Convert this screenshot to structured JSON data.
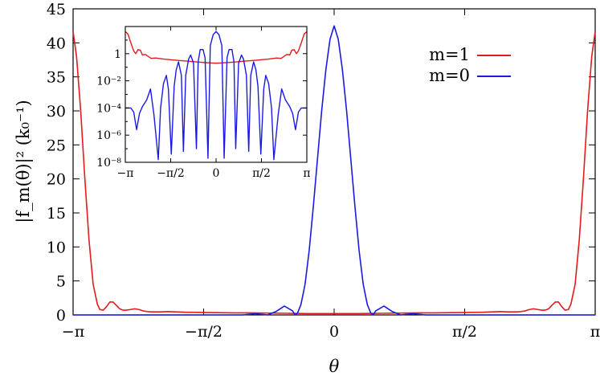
{
  "chart_data": [
    {
      "type": "line",
      "xlabel": "θ",
      "ylabel": "|f_m(θ)|² (k₀⁻¹)",
      "xlim": [
        -3.14159,
        3.14159
      ],
      "ylim": [
        0,
        45
      ],
      "xticks": [
        {
          "value": -3.14159,
          "label": "−π"
        },
        {
          "value": -1.5708,
          "label": "−π/2"
        },
        {
          "value": 0,
          "label": "0"
        },
        {
          "value": 1.5708,
          "label": "π/2"
        },
        {
          "value": 3.14159,
          "label": "π"
        }
      ],
      "yticks": [
        {
          "value": 0,
          "label": "0"
        },
        {
          "value": 5,
          "label": "5"
        },
        {
          "value": 10,
          "label": "10"
        },
        {
          "value": 15,
          "label": "15"
        },
        {
          "value": 20,
          "label": "20"
        },
        {
          "value": 25,
          "label": "25"
        },
        {
          "value": 30,
          "label": "30"
        },
        {
          "value": 35,
          "label": "35"
        },
        {
          "value": 40,
          "label": "40"
        },
        {
          "value": 45,
          "label": "45"
        }
      ],
      "legend_position": "top-right",
      "series": [
        {
          "name": "m=1",
          "legend_label": "m=1",
          "color": "#e41a1c",
          "x": [
            -3.14,
            -3.1,
            -3.05,
            -3.0,
            -2.95,
            -2.9,
            -2.85,
            -2.82,
            -2.78,
            -2.74,
            -2.7,
            -2.66,
            -2.62,
            -2.58,
            -2.54,
            -2.5,
            -2.45,
            -2.4,
            -2.35,
            -2.3,
            -2.25,
            -2.2,
            -2.1,
            -2.0,
            -1.8,
            -1.5,
            -1.2,
            -1.0,
            -0.6,
            -0.3,
            0.0,
            0.3,
            0.6,
            1.0,
            1.2,
            1.5,
            1.8,
            2.0,
            2.1,
            2.2,
            2.25,
            2.3,
            2.35,
            2.4,
            2.45,
            2.5,
            2.54,
            2.58,
            2.62,
            2.66,
            2.7,
            2.74,
            2.78,
            2.82,
            2.85,
            2.9,
            2.95,
            3.0,
            3.05,
            3.1,
            3.14
          ],
          "y": [
            41.5,
            38,
            30,
            20,
            11,
            4.5,
            1.6,
            0.8,
            0.7,
            1.2,
            1.9,
            1.9,
            1.4,
            0.9,
            0.7,
            0.7,
            0.8,
            0.9,
            0.8,
            0.6,
            0.5,
            0.45,
            0.45,
            0.5,
            0.4,
            0.35,
            0.3,
            0.3,
            0.25,
            0.2,
            0.2,
            0.2,
            0.25,
            0.3,
            0.3,
            0.35,
            0.4,
            0.5,
            0.45,
            0.45,
            0.5,
            0.6,
            0.8,
            0.9,
            0.8,
            0.7,
            0.7,
            0.9,
            1.4,
            1.9,
            1.9,
            1.2,
            0.7,
            0.8,
            1.6,
            4.5,
            11,
            20,
            30,
            38,
            41.5
          ]
        },
        {
          "name": "m=0",
          "legend_label": "m=0",
          "color": "#1a1ae4",
          "x": [
            -3.14,
            -1.1,
            -1.0,
            -0.95,
            -0.9,
            -0.8,
            -0.7,
            -0.6,
            -0.5,
            -0.47,
            -0.44,
            -0.4,
            -0.35,
            -0.3,
            -0.25,
            -0.2,
            -0.15,
            -0.1,
            -0.05,
            0.0,
            0.05,
            0.1,
            0.15,
            0.2,
            0.25,
            0.3,
            0.35,
            0.4,
            0.44,
            0.47,
            0.5,
            0.6,
            0.7,
            0.8,
            0.9,
            0.95,
            1.0,
            1.1,
            3.14
          ],
          "y": [
            0,
            0,
            0.12,
            0.18,
            0.12,
            0,
            0.5,
            1.3,
            0.6,
            0,
            0.3,
            1.5,
            4.5,
            9.5,
            16,
            23,
            30,
            36,
            40.5,
            42.5,
            40.5,
            36,
            30,
            23,
            16,
            9.5,
            4.5,
            1.5,
            0.3,
            0,
            0.6,
            1.3,
            0.5,
            0,
            0.12,
            0.18,
            0.12,
            0,
            0
          ]
        }
      ]
    },
    {
      "type": "line",
      "scale": "log",
      "xlim": [
        -3.14159,
        3.14159
      ],
      "ylim_exponent": [
        -8,
        2
      ],
      "xticks": [
        {
          "value": -3.14159,
          "label": "−π"
        },
        {
          "value": -1.5708,
          "label": "−π/2"
        },
        {
          "value": 0,
          "label": "0"
        },
        {
          "value": 1.5708,
          "label": "π/2"
        },
        {
          "value": 3.14159,
          "label": "π"
        }
      ],
      "yticks": [
        {
          "exp": 0,
          "label": "1"
        },
        {
          "exp": -2,
          "label": "10⁻²"
        },
        {
          "exp": -4,
          "label": "10⁻⁴"
        },
        {
          "exp": -6,
          "label": "10⁻⁶"
        },
        {
          "exp": -8,
          "label": "10⁻⁸"
        }
      ],
      "series": [
        {
          "name": "m=1",
          "color": "#e41a1c",
          "x": [
            -3.14,
            -3.05,
            -2.95,
            -2.85,
            -2.78,
            -2.7,
            -2.62,
            -2.55,
            -2.45,
            -2.35,
            -2.25,
            -2.1,
            -1.8,
            -1.4,
            -1.0,
            -0.6,
            -0.2,
            0.0,
            0.2,
            0.6,
            1.0,
            1.4,
            1.8,
            2.1,
            2.25,
            2.35,
            2.45,
            2.55,
            2.62,
            2.7,
            2.78,
            2.85,
            2.95,
            3.05,
            3.14
          ],
          "y_exp": [
            1.62,
            1.45,
            0.8,
            0.2,
            0.0,
            0.3,
            0.25,
            -0.1,
            -0.05,
            -0.2,
            -0.35,
            -0.32,
            -0.4,
            -0.48,
            -0.55,
            -0.62,
            -0.68,
            -0.7,
            -0.68,
            -0.62,
            -0.55,
            -0.48,
            -0.4,
            -0.32,
            -0.35,
            -0.2,
            -0.05,
            -0.1,
            0.25,
            0.3,
            0.0,
            0.2,
            0.8,
            1.45,
            1.62
          ]
        },
        {
          "name": "m=0",
          "color": "#1a1ae4",
          "x": [
            -3.14,
            -2.95,
            -2.85,
            -2.75,
            -2.65,
            -2.55,
            -2.4,
            -2.27,
            -2.15,
            -2.0,
            -1.92,
            -1.82,
            -1.72,
            -1.65,
            -1.55,
            -1.45,
            -1.38,
            -1.3,
            -1.2,
            -1.13,
            -1.05,
            -0.95,
            -0.88,
            -0.78,
            -0.68,
            -0.62,
            -0.55,
            -0.45,
            -0.38,
            -0.28,
            -0.2,
            -0.1,
            0.0,
            0.1,
            0.2,
            0.28,
            0.38,
            0.45,
            0.55,
            0.62,
            0.68,
            0.78,
            0.88,
            0.95,
            1.05,
            1.13,
            1.2,
            1.3,
            1.38,
            1.45,
            1.55,
            1.65,
            1.72,
            1.82,
            1.92,
            2.0,
            2.15,
            2.27,
            2.4,
            2.55,
            2.65,
            2.75,
            2.85,
            2.95,
            3.14
          ],
          "y_exp": [
            -4.0,
            -4.0,
            -4.3,
            -5.6,
            -4.4,
            -3.9,
            -3.4,
            -2.6,
            -4.5,
            -7.8,
            -4.0,
            -2.2,
            -1.6,
            -2.6,
            -7.4,
            -2.4,
            -1.2,
            -0.6,
            -1.6,
            -7.2,
            -1.6,
            -0.4,
            -0.1,
            -0.7,
            -7.0,
            -0.6,
            0.3,
            0.3,
            -0.3,
            -7.7,
            0.6,
            1.4,
            1.63,
            1.4,
            0.6,
            -7.7,
            -0.3,
            0.3,
            0.3,
            -0.6,
            -7.0,
            -0.7,
            -0.1,
            -0.4,
            -1.6,
            -7.2,
            -1.6,
            -0.6,
            -1.2,
            -2.4,
            -7.4,
            -2.6,
            -1.6,
            -2.2,
            -4.0,
            -7.8,
            -4.5,
            -2.6,
            -3.4,
            -3.9,
            -4.4,
            -5.6,
            -4.3,
            -4.0,
            -4.0
          ]
        }
      ]
    }
  ]
}
